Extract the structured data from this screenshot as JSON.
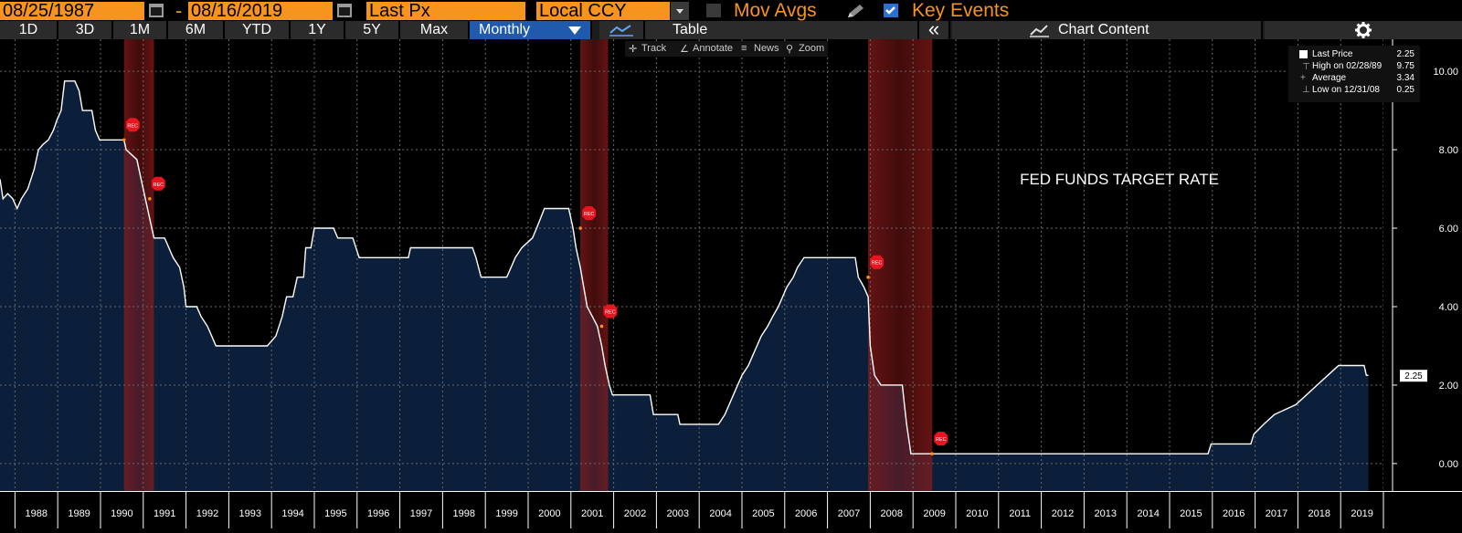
{
  "toolbar": {
    "start_date": "08/25/1987",
    "separator": "-",
    "end_date": "08/16/2019",
    "field": "Last Px",
    "currency": "Local CCY",
    "mov_avgs_label": "Mov Avgs",
    "key_events_label": "Key Events",
    "key_events_checked": true
  },
  "tabs": {
    "d1": "1D",
    "d3": "3D",
    "m1": "1M",
    "m6": "6M",
    "ytd": "YTD",
    "y1": "1Y",
    "y5": "5Y",
    "max": "Max",
    "period": "Monthly",
    "table": "Table",
    "collapse": "«",
    "chart_content": "Chart Content"
  },
  "chart_tools": {
    "track": "Track",
    "annotate": "Annotate",
    "news": "News",
    "zoom": "Zoom"
  },
  "legend": {
    "last_price_label": "Last Price",
    "last_price_value": "2.25",
    "high_label": "High on 02/28/89",
    "high_value": "9.75",
    "average_label": "Average",
    "average_value": "3.34",
    "low_label": "Low on 12/31/08",
    "low_value": "0.25"
  },
  "colors": {
    "accent": "#f7941d",
    "active_tab": "#1f5aad",
    "area_fill": "#0b1f3a",
    "line": "#ffffff",
    "recession": "#8b1a1a",
    "event_marker": "#e8141e"
  },
  "chart_data": {
    "type": "area",
    "title": "FED FUNDS TARGET RATE",
    "last_value_label": "2.25",
    "ylim": [
      -0.7,
      10.7
    ],
    "yticks": [
      0,
      2,
      4,
      6,
      8,
      10
    ],
    "ytick_labels": [
      "0.00",
      "2.00",
      "4.00",
      "6.00",
      "8.00",
      "10.00"
    ],
    "x_range": [
      1987.65,
      2020.0
    ],
    "year_labels": [
      "1988",
      "1989",
      "1990",
      "1991",
      "1992",
      "1993",
      "1994",
      "1995",
      "1996",
      "1997",
      "1998",
      "1999",
      "2000",
      "2001",
      "2002",
      "2003",
      "2004",
      "2005",
      "2006",
      "2007",
      "2008",
      "2009",
      "2010",
      "2011",
      "2012",
      "2013",
      "2014",
      "2015",
      "2016",
      "2017",
      "2018",
      "2019"
    ],
    "grid": true,
    "recessions": [
      [
        1990.55,
        1991.25
      ],
      [
        2001.22,
        2001.87
      ],
      [
        2007.95,
        2009.45
      ]
    ],
    "event_marker_label": "REC",
    "events": [
      [
        1990.55,
        8.25
      ],
      [
        1991.15,
        6.75
      ],
      [
        2001.22,
        6.0
      ],
      [
        2001.72,
        3.5
      ],
      [
        2007.95,
        4.75
      ],
      [
        2009.45,
        0.25
      ]
    ],
    "series": [
      {
        "values": [
          [
            1987.65,
            7.25
          ],
          [
            1987.72,
            6.75
          ],
          [
            1987.83,
            6.88
          ],
          [
            1987.95,
            6.75
          ],
          [
            1988.05,
            6.5
          ],
          [
            1988.15,
            6.75
          ],
          [
            1988.3,
            7.0
          ],
          [
            1988.45,
            7.5
          ],
          [
            1988.55,
            8.0
          ],
          [
            1988.65,
            8.13
          ],
          [
            1988.78,
            8.25
          ],
          [
            1988.9,
            8.5
          ],
          [
            1988.98,
            8.75
          ],
          [
            1989.08,
            9.0
          ],
          [
            1989.16,
            9.75
          ],
          [
            1989.4,
            9.75
          ],
          [
            1989.5,
            9.5
          ],
          [
            1989.58,
            9.0
          ],
          [
            1989.8,
            9.0
          ],
          [
            1989.88,
            8.5
          ],
          [
            1989.98,
            8.25
          ],
          [
            1990.55,
            8.25
          ],
          [
            1990.6,
            8.0
          ],
          [
            1990.85,
            7.75
          ],
          [
            1990.95,
            7.25
          ],
          [
            1991.05,
            6.75
          ],
          [
            1991.15,
            6.25
          ],
          [
            1991.25,
            5.75
          ],
          [
            1991.5,
            5.75
          ],
          [
            1991.7,
            5.25
          ],
          [
            1991.85,
            5.0
          ],
          [
            1991.95,
            4.5
          ],
          [
            1992.0,
            4.0
          ],
          [
            1992.25,
            4.0
          ],
          [
            1992.35,
            3.75
          ],
          [
            1992.5,
            3.5
          ],
          [
            1992.6,
            3.25
          ],
          [
            1992.7,
            3.0
          ],
          [
            1993.9,
            3.0
          ],
          [
            1994.1,
            3.25
          ],
          [
            1994.25,
            3.75
          ],
          [
            1994.35,
            4.25
          ],
          [
            1994.5,
            4.25
          ],
          [
            1994.6,
            4.75
          ],
          [
            1994.75,
            4.75
          ],
          [
            1994.8,
            5.5
          ],
          [
            1994.92,
            5.5
          ],
          [
            1995.0,
            6.0
          ],
          [
            1995.45,
            6.0
          ],
          [
            1995.55,
            5.75
          ],
          [
            1995.9,
            5.75
          ],
          [
            1996.05,
            5.25
          ],
          [
            1997.2,
            5.25
          ],
          [
            1997.25,
            5.5
          ],
          [
            1998.7,
            5.5
          ],
          [
            1998.78,
            5.25
          ],
          [
            1998.9,
            4.75
          ],
          [
            1999.5,
            4.75
          ],
          [
            1999.6,
            5.0
          ],
          [
            1999.7,
            5.25
          ],
          [
            1999.85,
            5.5
          ],
          [
            2000.1,
            5.75
          ],
          [
            2000.2,
            6.0
          ],
          [
            2000.38,
            6.5
          ],
          [
            2000.95,
            6.5
          ],
          [
            2001.05,
            6.0
          ],
          [
            2001.12,
            5.5
          ],
          [
            2001.22,
            5.0
          ],
          [
            2001.3,
            4.5
          ],
          [
            2001.38,
            4.0
          ],
          [
            2001.5,
            3.75
          ],
          [
            2001.62,
            3.5
          ],
          [
            2001.72,
            3.0
          ],
          [
            2001.8,
            2.5
          ],
          [
            2001.9,
            2.0
          ],
          [
            2001.97,
            1.75
          ],
          [
            2002.85,
            1.75
          ],
          [
            2002.93,
            1.25
          ],
          [
            2003.5,
            1.25
          ],
          [
            2003.55,
            1.0
          ],
          [
            2004.45,
            1.0
          ],
          [
            2004.6,
            1.25
          ],
          [
            2004.7,
            1.5
          ],
          [
            2004.8,
            1.75
          ],
          [
            2004.9,
            2.0
          ],
          [
            2005.0,
            2.25
          ],
          [
            2005.15,
            2.5
          ],
          [
            2005.25,
            2.75
          ],
          [
            2005.35,
            3.0
          ],
          [
            2005.45,
            3.25
          ],
          [
            2005.6,
            3.5
          ],
          [
            2005.72,
            3.75
          ],
          [
            2005.85,
            4.0
          ],
          [
            2005.95,
            4.25
          ],
          [
            2006.05,
            4.5
          ],
          [
            2006.2,
            4.75
          ],
          [
            2006.3,
            5.0
          ],
          [
            2006.45,
            5.25
          ],
          [
            2007.65,
            5.25
          ],
          [
            2007.72,
            4.75
          ],
          [
            2007.85,
            4.5
          ],
          [
            2007.95,
            4.25
          ],
          [
            2008.0,
            3.0
          ],
          [
            2008.1,
            2.25
          ],
          [
            2008.25,
            2.0
          ],
          [
            2008.75,
            2.0
          ],
          [
            2008.8,
            1.5
          ],
          [
            2008.85,
            1.0
          ],
          [
            2008.95,
            0.25
          ],
          [
            2015.9,
            0.25
          ],
          [
            2015.97,
            0.5
          ],
          [
            2016.9,
            0.5
          ],
          [
            2016.97,
            0.75
          ],
          [
            2017.2,
            1.0
          ],
          [
            2017.45,
            1.25
          ],
          [
            2017.95,
            1.5
          ],
          [
            2018.2,
            1.75
          ],
          [
            2018.45,
            2.0
          ],
          [
            2018.7,
            2.25
          ],
          [
            2018.95,
            2.5
          ],
          [
            2019.55,
            2.5
          ],
          [
            2019.6,
            2.25
          ],
          [
            2019.65,
            2.25
          ]
        ]
      }
    ]
  }
}
